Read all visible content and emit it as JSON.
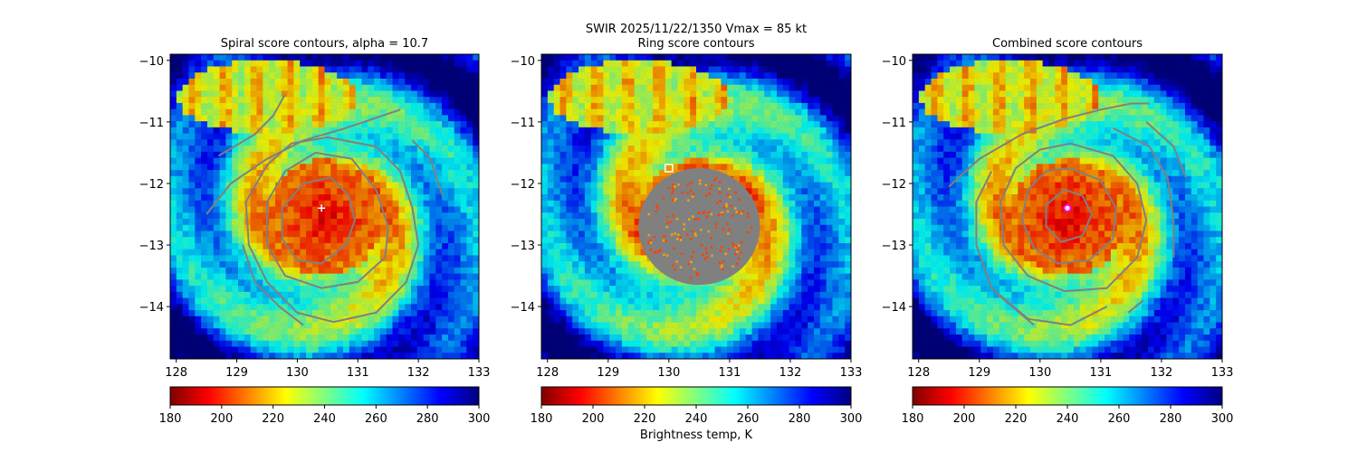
{
  "suptitle": "SWIR  2025/11/22/1350    Vmax = 85 kt",
  "colorbar_label": "Brightness temp, K",
  "colormap": [
    "#800000",
    "#ff0000",
    "#ff8000",
    "#ffff00",
    "#80ff80",
    "#00ffff",
    "#0080ff",
    "#0000ff",
    "#000080"
  ],
  "contour_color": "#808080",
  "chart_data": [
    {
      "type": "heatmap",
      "title": "Spiral score contours, alpha = 10.7",
      "xlim": [
        127.9,
        133.0
      ],
      "ylim": [
        -14.85,
        -9.9
      ],
      "xticks": [
        128,
        129,
        130,
        131,
        132,
        133
      ],
      "xtick_labels": [
        "128",
        "129",
        "130",
        "131",
        "132",
        "133"
      ],
      "yticks": [
        -10,
        -11,
        -12,
        -13,
        -14
      ],
      "ytick_labels": [
        "−10",
        "−11",
        "−12",
        "−13",
        "−14"
      ],
      "colorbar": {
        "min": 180,
        "max": 300,
        "ticks": [
          180,
          200,
          220,
          240,
          260,
          280,
          300
        ],
        "tick_labels": [
          "180",
          "200",
          "220",
          "240",
          "260",
          "280",
          "300"
        ]
      },
      "center_marker": {
        "symbol": "plus",
        "lon": 130.4,
        "lat": -12.4,
        "color": "#ffffff"
      },
      "contours": [
        [
          [
            130.1,
            -12.0
          ],
          [
            130.55,
            -11.9
          ],
          [
            130.85,
            -12.2
          ],
          [
            130.95,
            -12.6
          ],
          [
            130.8,
            -13.0
          ],
          [
            130.4,
            -13.3
          ],
          [
            130.0,
            -13.25
          ],
          [
            129.75,
            -12.9
          ],
          [
            129.75,
            -12.4
          ],
          [
            130.1,
            -12.0
          ]
        ],
        [
          [
            130.3,
            -11.5
          ],
          [
            130.9,
            -11.6
          ],
          [
            131.3,
            -12.1
          ],
          [
            131.5,
            -12.7
          ],
          [
            131.45,
            -13.2
          ],
          [
            131.0,
            -13.6
          ],
          [
            130.4,
            -13.7
          ],
          [
            129.8,
            -13.5
          ],
          [
            129.5,
            -13.0
          ],
          [
            129.5,
            -12.3
          ],
          [
            129.8,
            -11.8
          ],
          [
            130.3,
            -11.5
          ]
        ],
        [
          [
            131.3,
            -11.4
          ],
          [
            131.7,
            -11.8
          ],
          [
            131.9,
            -12.4
          ],
          [
            132.0,
            -13.0
          ],
          [
            131.8,
            -13.6
          ],
          [
            131.3,
            -14.1
          ],
          [
            130.6,
            -14.25
          ],
          [
            130.0,
            -14.1
          ],
          [
            129.5,
            -13.6
          ],
          [
            129.2,
            -13.0
          ],
          [
            129.15,
            -12.3
          ],
          [
            129.5,
            -11.7
          ],
          [
            129.9,
            -11.35
          ],
          [
            130.5,
            -11.25
          ],
          [
            131.3,
            -11.4
          ]
        ],
        [
          [
            128.5,
            -12.5
          ],
          [
            128.9,
            -12.0
          ],
          [
            129.5,
            -11.6
          ],
          [
            130.1,
            -11.3
          ],
          [
            130.8,
            -11.1
          ],
          [
            131.4,
            -10.9
          ],
          [
            131.7,
            -10.8
          ]
        ],
        [
          [
            128.7,
            -11.55
          ],
          [
            129.3,
            -11.2
          ],
          [
            129.6,
            -10.9
          ],
          [
            129.8,
            -10.55
          ]
        ],
        [
          [
            129.1,
            -13.0
          ],
          [
            129.3,
            -13.6
          ],
          [
            129.7,
            -14.0
          ],
          [
            130.1,
            -14.3
          ]
        ],
        [
          [
            131.9,
            -11.3
          ],
          [
            132.2,
            -11.6
          ],
          [
            132.4,
            -12.2
          ]
        ]
      ]
    },
    {
      "type": "heatmap",
      "title": "Ring score contours",
      "xlim": [
        127.9,
        133.0
      ],
      "ylim": [
        -14.85,
        -9.9
      ],
      "xticks": [
        128,
        129,
        130,
        131,
        132,
        133
      ],
      "xtick_labels": [
        "128",
        "129",
        "130",
        "131",
        "132",
        "133"
      ],
      "yticks": [
        -10,
        -11,
        -12,
        -13,
        -14
      ],
      "ytick_labels": [
        "−10",
        "−11",
        "−12",
        "−13",
        "−14"
      ],
      "colorbar": {
        "min": 180,
        "max": 300,
        "ticks": [
          180,
          200,
          220,
          240,
          260,
          280,
          300
        ],
        "tick_labels": [
          "180",
          "200",
          "220",
          "240",
          "260",
          "280",
          "300"
        ]
      },
      "center_marker": {
        "symbol": "square",
        "lon": 130.0,
        "lat": -11.75,
        "color": "#ffffff"
      },
      "ring_region": {
        "lon": 130.5,
        "lat": -12.7,
        "radius_lon": 1.0,
        "radius_lat": 0.95
      },
      "contours": []
    },
    {
      "type": "heatmap",
      "title": "Combined score contours",
      "xlim": [
        127.9,
        133.0
      ],
      "ylim": [
        -14.85,
        -9.9
      ],
      "xticks": [
        128,
        129,
        130,
        131,
        132,
        133
      ],
      "xtick_labels": [
        "128",
        "129",
        "130",
        "131",
        "132",
        "133"
      ],
      "yticks": [
        -10,
        -11,
        -12,
        -13,
        -14
      ],
      "ytick_labels": [
        "−10",
        "−11",
        "−12",
        "−13",
        "−14"
      ],
      "colorbar": {
        "min": 180,
        "max": 300,
        "ticks": [
          180,
          200,
          220,
          240,
          260,
          280,
          300
        ],
        "tick_labels": [
          "180",
          "200",
          "220",
          "240",
          "260",
          "280",
          "300"
        ]
      },
      "center_marker": {
        "symbol": "circle",
        "lon": 130.45,
        "lat": -12.4,
        "color": "#ff00ff"
      },
      "contours": [
        [
          [
            130.4,
            -12.1
          ],
          [
            130.7,
            -12.2
          ],
          [
            130.85,
            -12.5
          ],
          [
            130.7,
            -12.85
          ],
          [
            130.35,
            -12.95
          ],
          [
            130.1,
            -12.7
          ],
          [
            130.1,
            -12.35
          ],
          [
            130.4,
            -12.1
          ]
        ],
        [
          [
            130.5,
            -11.75
          ],
          [
            131.0,
            -11.95
          ],
          [
            131.25,
            -12.4
          ],
          [
            131.2,
            -12.9
          ],
          [
            130.8,
            -13.25
          ],
          [
            130.3,
            -13.3
          ],
          [
            129.9,
            -13.05
          ],
          [
            129.7,
            -12.6
          ],
          [
            129.8,
            -12.1
          ],
          [
            130.1,
            -11.8
          ],
          [
            130.5,
            -11.75
          ]
        ],
        [
          [
            130.5,
            -11.35
          ],
          [
            131.2,
            -11.55
          ],
          [
            131.6,
            -12.0
          ],
          [
            131.75,
            -12.6
          ],
          [
            131.6,
            -13.2
          ],
          [
            131.1,
            -13.7
          ],
          [
            130.4,
            -13.75
          ],
          [
            129.8,
            -13.5
          ],
          [
            129.4,
            -13.0
          ],
          [
            129.35,
            -12.3
          ],
          [
            129.6,
            -11.75
          ],
          [
            130.0,
            -11.45
          ],
          [
            130.5,
            -11.35
          ]
        ],
        [
          [
            131.2,
            -11.1
          ],
          [
            131.8,
            -11.4
          ],
          [
            132.1,
            -11.9
          ],
          [
            132.2,
            -12.6
          ],
          [
            132.2,
            -13.2
          ]
        ],
        [
          [
            131.1,
            -14.0
          ],
          [
            130.5,
            -14.3
          ],
          [
            129.8,
            -14.2
          ],
          [
            129.2,
            -13.7
          ],
          [
            128.95,
            -13.0
          ],
          [
            128.95,
            -12.3
          ],
          [
            129.2,
            -11.8
          ]
        ],
        [
          [
            128.5,
            -12.05
          ],
          [
            129.0,
            -11.6
          ],
          [
            129.7,
            -11.2
          ],
          [
            130.4,
            -10.95
          ],
          [
            131.0,
            -10.8
          ],
          [
            131.5,
            -10.7
          ],
          [
            131.8,
            -10.7
          ]
        ],
        [
          [
            131.75,
            -11.0
          ],
          [
            132.2,
            -11.4
          ],
          [
            132.4,
            -11.9
          ]
        ],
        [
          [
            129.3,
            -13.8
          ],
          [
            129.9,
            -14.3
          ]
        ],
        [
          [
            131.45,
            -14.1
          ],
          [
            131.7,
            -13.9
          ]
        ]
      ]
    }
  ]
}
